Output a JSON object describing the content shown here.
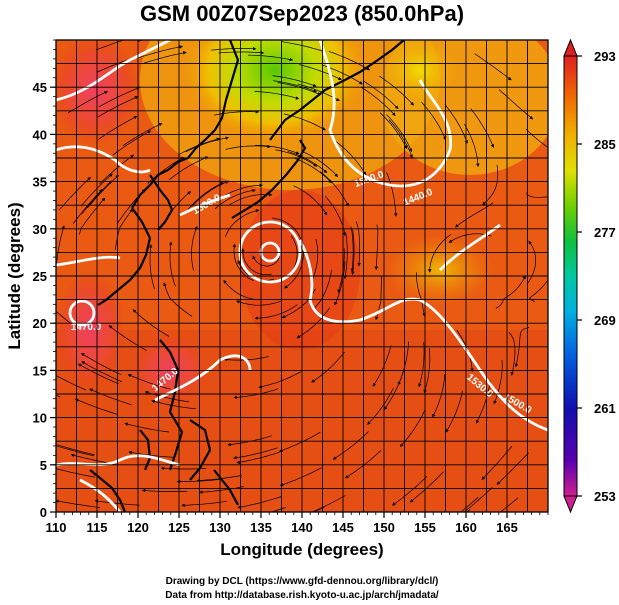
{
  "chart_data": {
    "type": "heatmap",
    "title": "GSM 00Z07Sep2023 (850.0hPa)",
    "xlabel": "Longitude (degrees)",
    "ylabel": "Latitude  (degrees)",
    "xlim": [
      110,
      170
    ],
    "ylim": [
      0,
      50
    ],
    "x_ticks": [
      "110",
      "115",
      "120",
      "125",
      "130",
      "135",
      "140",
      "145",
      "150",
      "155",
      "160",
      "165"
    ],
    "y_ticks": [
      "0",
      "5",
      "10",
      "15",
      "20",
      "25",
      "30",
      "35",
      "40",
      "45"
    ],
    "colorbar": {
      "range": [
        253,
        293
      ],
      "tick_labels": [
        "293",
        "285",
        "277",
        "269",
        "261",
        "253"
      ],
      "colors": [
        "#d02090",
        "#4b00a8",
        "#1010b0",
        "#0060e0",
        "#00a0e0",
        "#00c8b0",
        "#00c040",
        "#60d000",
        "#c0e000",
        "#f0e000",
        "#f0b000",
        "#f07000",
        "#e84000",
        "#e02020"
      ]
    },
    "grid": true,
    "contour_labels": [
      "1560.0",
      "1440.0",
      "1500.0",
      "1470.0",
      "1530.0",
      "1470.0",
      "1500.0"
    ]
  },
  "footer": {
    "line1": "Drawing by DCL (https://www.gfd-dennou.org/library/dcl/)",
    "line2": "Data from http://database.rish.kyoto-u.ac.jp/arch/jmadata/"
  }
}
